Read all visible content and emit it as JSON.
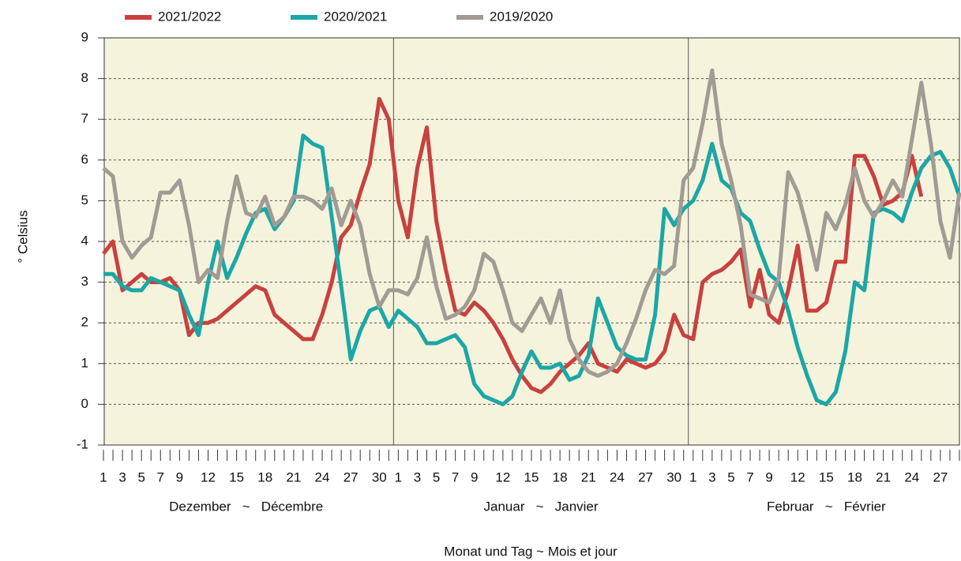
{
  "chart_data": {
    "type": "line",
    "y_label": "° Celsius",
    "x_label": "Monat und Tag  ~  Mois et jour",
    "month_labels": [
      "Dezember   ~   Décembre",
      "Januar   ~   Janvier",
      "Februar   ~   Février"
    ],
    "categories": [
      "1",
      null,
      "3",
      null,
      "5",
      null,
      "7",
      null,
      "9",
      null,
      null,
      "12",
      null,
      null,
      "15",
      null,
      null,
      "18",
      null,
      null,
      "21",
      null,
      null,
      "24",
      null,
      null,
      "27",
      null,
      null,
      "30",
      null,
      "1",
      null,
      "3",
      null,
      "5",
      null,
      "7",
      null,
      "9",
      null,
      null,
      "12",
      null,
      null,
      "15",
      null,
      null,
      "18",
      null,
      null,
      "21",
      null,
      null,
      "24",
      null,
      null,
      "27",
      null,
      null,
      "30",
      null,
      "1",
      null,
      "3",
      null,
      "5",
      null,
      "7",
      null,
      "9",
      null,
      null,
      "12",
      null,
      null,
      "15",
      null,
      null,
      "18",
      null,
      null,
      "21",
      null,
      null,
      "24",
      null,
      null,
      "27",
      null,
      null
    ],
    "series": [
      {
        "name": "2021/2022",
        "color": "#c8413f",
        "values": [
          3.7,
          4.0,
          2.8,
          3.0,
          3.2,
          3.0,
          3.0,
          3.1,
          2.8,
          1.7,
          2.0,
          2.0,
          2.1,
          2.3,
          2.5,
          2.7,
          2.9,
          2.8,
          2.2,
          2.0,
          1.8,
          1.6,
          1.6,
          2.2,
          3.0,
          4.1,
          4.4,
          5.2,
          5.9,
          7.5,
          7.0,
          5.0,
          4.1,
          5.8,
          6.8,
          4.5,
          3.3,
          2.3,
          2.2,
          2.5,
          2.3,
          2.0,
          1.6,
          1.1,
          0.7,
          0.4,
          0.3,
          0.5,
          0.8,
          1.0,
          1.2,
          1.5,
          1.0,
          0.9,
          0.8,
          1.1,
          1.0,
          0.9,
          1.0,
          1.3,
          2.2,
          1.7,
          1.6,
          3.0,
          3.2,
          3.3,
          3.5,
          3.8,
          2.4,
          3.3,
          2.2,
          2.0,
          2.8,
          3.9,
          2.3,
          2.3,
          2.5,
          3.5,
          3.5,
          6.1,
          6.1,
          5.6,
          4.9,
          5.0,
          5.2,
          6.1,
          5.1,
          null,
          null,
          null,
          null
        ]
      },
      {
        "name": "2020/2021",
        "color": "#1ba7a6",
        "values": [
          3.2,
          3.2,
          2.9,
          2.8,
          2.8,
          3.1,
          3.0,
          2.9,
          2.8,
          2.2,
          1.7,
          3.0,
          4.0,
          3.1,
          3.6,
          4.2,
          4.7,
          4.8,
          4.3,
          4.6,
          5.0,
          6.6,
          6.4,
          6.3,
          4.6,
          2.9,
          1.1,
          1.8,
          2.3,
          2.4,
          1.9,
          2.3,
          2.1,
          1.9,
          1.5,
          1.5,
          1.6,
          1.7,
          1.4,
          0.5,
          0.2,
          0.1,
          0.0,
          0.2,
          0.8,
          1.3,
          0.9,
          0.9,
          1.0,
          0.6,
          0.7,
          1.2,
          2.6,
          2.0,
          1.4,
          1.2,
          1.1,
          1.1,
          2.2,
          4.8,
          4.4,
          4.8,
          5.0,
          5.5,
          6.4,
          5.5,
          5.3,
          4.7,
          4.5,
          3.8,
          3.2,
          3.0,
          2.3,
          1.4,
          0.7,
          0.1,
          0.0,
          0.3,
          1.3,
          3.0,
          2.8,
          4.7,
          4.8,
          4.7,
          4.5,
          5.2,
          5.8,
          6.1,
          6.2,
          5.8,
          5.1
        ]
      },
      {
        "name": "2019/2020",
        "color": "#a19b94",
        "values": [
          5.8,
          5.6,
          4.0,
          3.6,
          3.9,
          4.1,
          5.2,
          5.2,
          5.5,
          4.4,
          3.0,
          3.3,
          3.1,
          4.5,
          5.6,
          4.7,
          4.6,
          5.1,
          4.4,
          4.6,
          5.1,
          5.1,
          5.0,
          4.8,
          5.3,
          4.4,
          5.0,
          4.4,
          3.2,
          2.4,
          2.8,
          2.8,
          2.7,
          3.1,
          4.1,
          2.9,
          2.1,
          2.2,
          2.4,
          2.8,
          3.7,
          3.5,
          2.8,
          2.0,
          1.8,
          2.2,
          2.6,
          2.0,
          2.8,
          1.6,
          1.1,
          0.8,
          0.7,
          0.8,
          1.0,
          1.5,
          2.1,
          2.8,
          3.3,
          3.2,
          3.4,
          5.5,
          5.8,
          6.9,
          8.2,
          6.4,
          5.5,
          4.4,
          2.7,
          2.6,
          2.5,
          3.1,
          5.7,
          5.2,
          4.3,
          3.3,
          4.7,
          4.3,
          4.9,
          5.8,
          5.0,
          4.6,
          5.0,
          5.5,
          5.1,
          6.5,
          7.9,
          6.4,
          4.5,
          3.6,
          5.2
        ]
      }
    ],
    "ylim": [
      -1,
      9
    ],
    "yticks": [
      -1,
      0,
      1,
      2,
      3,
      4,
      5,
      6,
      7,
      8,
      9
    ],
    "grid": true,
    "legend": "top"
  }
}
